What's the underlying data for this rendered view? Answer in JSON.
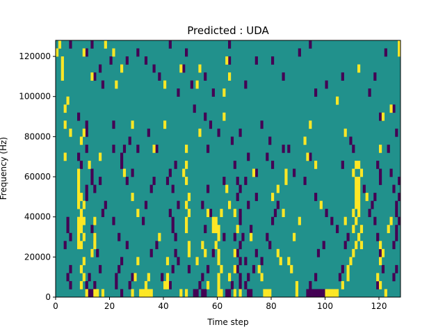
{
  "chart_data": {
    "type": "heatmap",
    "title": "Predicted : UDA",
    "xlabel": "Time step",
    "ylabel": "Frequency (Hz)",
    "xlim": [
      0,
      128
    ],
    "ylim": [
      0,
      128000
    ],
    "xticks": [
      0,
      20,
      40,
      60,
      80,
      100,
      120
    ],
    "yticks": [
      0,
      20000,
      40000,
      60000,
      80000,
      100000,
      120000
    ],
    "grid": false,
    "legend": "none",
    "colors": {
      "background": "#21918c",
      "low": "#440154",
      "high": "#fde725"
    },
    "cell_width_steps": 1,
    "cell_height_hz": 4000,
    "high_cells": [
      [
        0,
        120000
      ],
      [
        1,
        124000
      ],
      [
        2,
        116000
      ],
      [
        2,
        112000
      ],
      [
        2,
        108000
      ],
      [
        4,
        96000
      ],
      [
        3,
        92000
      ],
      [
        3,
        84000
      ],
      [
        5,
        80000
      ],
      [
        3,
        68000
      ],
      [
        8,
        60000
      ],
      [
        8,
        56000
      ],
      [
        8,
        52000
      ],
      [
        8,
        48000
      ],
      [
        8,
        44000
      ],
      [
        9,
        48000
      ],
      [
        9,
        40000
      ],
      [
        10,
        44000
      ],
      [
        8,
        36000
      ],
      [
        9,
        36000
      ],
      [
        10,
        36000
      ],
      [
        8,
        32000
      ],
      [
        9,
        32000
      ],
      [
        10,
        28000
      ],
      [
        8,
        28000
      ],
      [
        9,
        24000
      ],
      [
        8,
        24000
      ],
      [
        10,
        16000
      ],
      [
        9,
        12000
      ],
      [
        10,
        8000
      ],
      [
        9,
        4000
      ],
      [
        14,
        36000
      ],
      [
        14,
        28000
      ],
      [
        14,
        24000
      ],
      [
        13,
        20000
      ],
      [
        11,
        0
      ],
      [
        14,
        0
      ],
      [
        15,
        0
      ],
      [
        17,
        0
      ],
      [
        16,
        68000
      ],
      [
        12,
        64000
      ],
      [
        10,
        120000
      ],
      [
        13,
        108000
      ],
      [
        9,
        76000
      ],
      [
        10,
        80000
      ],
      [
        18,
        124000
      ],
      [
        21,
        120000
      ],
      [
        22,
        104000
      ],
      [
        24,
        112000
      ],
      [
        28,
        84000
      ],
      [
        25,
        60000
      ],
      [
        28,
        48000
      ],
      [
        30,
        40000
      ],
      [
        30,
        16000
      ],
      [
        29,
        8000
      ],
      [
        28,
        0
      ],
      [
        31,
        0
      ],
      [
        32,
        0
      ],
      [
        33,
        0
      ],
      [
        34,
        0
      ],
      [
        35,
        0
      ],
      [
        33,
        4000
      ],
      [
        34,
        8000
      ],
      [
        40,
        104000
      ],
      [
        40,
        84000
      ],
      [
        36,
        72000
      ],
      [
        38,
        28000
      ],
      [
        41,
        16000
      ],
      [
        41,
        8000
      ],
      [
        41,
        4000
      ],
      [
        40,
        4000
      ],
      [
        46,
        0
      ],
      [
        48,
        0
      ],
      [
        56,
        4000
      ],
      [
        46,
        112000
      ],
      [
        53,
        112000
      ],
      [
        52,
        104000
      ],
      [
        62,
        100000
      ],
      [
        64,
        108000
      ],
      [
        63,
        116000
      ],
      [
        62,
        88000
      ],
      [
        53,
        80000
      ],
      [
        48,
        72000
      ],
      [
        48,
        64000
      ],
      [
        48,
        56000
      ],
      [
        47,
        60000
      ],
      [
        49,
        48000
      ],
      [
        48,
        44000
      ],
      [
        49,
        40000
      ],
      [
        48,
        36000
      ],
      [
        48,
        32000
      ],
      [
        49,
        24000
      ],
      [
        49,
        20000
      ],
      [
        52,
        16000
      ],
      [
        54,
        24000
      ],
      [
        55,
        20000
      ],
      [
        58,
        36000
      ],
      [
        59,
        36000
      ],
      [
        58,
        32000
      ],
      [
        59,
        32000
      ],
      [
        60,
        32000
      ],
      [
        60,
        28000
      ],
      [
        59,
        24000
      ],
      [
        60,
        20000
      ],
      [
        60,
        16000
      ],
      [
        61,
        12000
      ],
      [
        60,
        8000
      ],
      [
        60,
        4000
      ],
      [
        60,
        0
      ],
      [
        61,
        0
      ],
      [
        63,
        52000
      ],
      [
        64,
        44000
      ],
      [
        56,
        40000
      ],
      [
        61,
        40000
      ],
      [
        66,
        40000
      ],
      [
        67,
        32000
      ],
      [
        66,
        20000
      ],
      [
        66,
        12000
      ],
      [
        64,
        8000
      ],
      [
        66,
        0
      ],
      [
        68,
        0
      ],
      [
        73,
        60000
      ],
      [
        72,
        28000
      ],
      [
        75,
        12000
      ],
      [
        76,
        8000
      ],
      [
        77,
        0
      ],
      [
        78,
        0
      ],
      [
        79,
        0
      ],
      [
        82,
        20000
      ],
      [
        83,
        16000
      ],
      [
        85,
        60000
      ],
      [
        85,
        56000
      ],
      [
        82,
        52000
      ],
      [
        80,
        48000
      ],
      [
        84,
        40000
      ],
      [
        90,
        36000
      ],
      [
        88,
        28000
      ],
      [
        86,
        16000
      ],
      [
        87,
        12000
      ],
      [
        89,
        0
      ],
      [
        89,
        4000
      ],
      [
        92,
        76000
      ],
      [
        93,
        68000
      ],
      [
        96,
        64000
      ],
      [
        94,
        84000
      ],
      [
        100,
        0
      ],
      [
        101,
        0
      ],
      [
        102,
        0
      ],
      [
        103,
        0
      ],
      [
        104,
        0
      ],
      [
        106,
        4000
      ],
      [
        108,
        8000
      ],
      [
        108,
        12000
      ],
      [
        109,
        16000
      ],
      [
        110,
        20000
      ],
      [
        111,
        24000
      ],
      [
        110,
        32000
      ],
      [
        111,
        36000
      ],
      [
        110,
        40000
      ],
      [
        112,
        40000
      ],
      [
        111,
        44000
      ],
      [
        112,
        44000
      ],
      [
        111,
        48000
      ],
      [
        112,
        48000
      ],
      [
        111,
        52000
      ],
      [
        112,
        52000
      ],
      [
        111,
        56000
      ],
      [
        112,
        56000
      ],
      [
        113,
        60000
      ],
      [
        112,
        64000
      ],
      [
        111,
        64000
      ],
      [
        110,
        60000
      ],
      [
        113,
        32000
      ],
      [
        112,
        28000
      ],
      [
        113,
        24000
      ],
      [
        107,
        36000
      ],
      [
        107,
        80000
      ],
      [
        104,
        96000
      ],
      [
        112,
        112000
      ],
      [
        120,
        16000
      ],
      [
        119,
        8000
      ],
      [
        120,
        4000
      ],
      [
        122,
        0
      ],
      [
        121,
        20000
      ],
      [
        120,
        24000
      ],
      [
        123,
        32000
      ],
      [
        124,
        36000
      ],
      [
        120,
        72000
      ],
      [
        121,
        88000
      ],
      [
        124,
        92000
      ],
      [
        127,
        120000
      ],
      [
        127,
        124000
      ],
      [
        115,
        48000
      ],
      [
        98,
        44000
      ]
    ],
    "low_cells": [
      [
        5,
        124000
      ],
      [
        11,
        120000
      ],
      [
        13,
        124000
      ],
      [
        14,
        108000
      ],
      [
        16,
        112000
      ],
      [
        17,
        104000
      ],
      [
        20,
        116000
      ],
      [
        26,
        116000
      ],
      [
        30,
        120000
      ],
      [
        33,
        116000
      ],
      [
        38,
        108000
      ],
      [
        42,
        124000
      ],
      [
        45,
        100000
      ],
      [
        48,
        120000
      ],
      [
        55,
        108000
      ],
      [
        58,
        100000
      ],
      [
        64,
        116000
      ],
      [
        64,
        124000
      ],
      [
        70,
        104000
      ],
      [
        74,
        116000
      ],
      [
        80,
        116000
      ],
      [
        84,
        108000
      ],
      [
        90,
        120000
      ],
      [
        94,
        124000
      ],
      [
        96,
        100000
      ],
      [
        100,
        104000
      ],
      [
        106,
        108000
      ],
      [
        116,
        100000
      ],
      [
        118,
        108000
      ],
      [
        120,
        88000
      ],
      [
        122,
        120000
      ],
      [
        8,
        88000
      ],
      [
        11,
        84000
      ],
      [
        11,
        80000
      ],
      [
        11,
        72000
      ],
      [
        8,
        68000
      ],
      [
        9,
        64000
      ],
      [
        13,
        60000
      ],
      [
        11,
        52000
      ],
      [
        11,
        48000
      ],
      [
        13,
        56000
      ],
      [
        14,
        52000
      ],
      [
        16,
        56000
      ],
      [
        17,
        40000
      ],
      [
        18,
        44000
      ],
      [
        14,
        28000
      ],
      [
        13,
        32000
      ],
      [
        15,
        20000
      ],
      [
        16,
        12000
      ],
      [
        12,
        8000
      ],
      [
        11,
        4000
      ],
      [
        12,
        0
      ],
      [
        13,
        0
      ],
      [
        14,
        4000
      ],
      [
        5,
        4000
      ],
      [
        4,
        8000
      ],
      [
        5,
        12000
      ],
      [
        4,
        32000
      ],
      [
        4,
        36000
      ],
      [
        5,
        28000
      ],
      [
        3,
        24000
      ],
      [
        21,
        84000
      ],
      [
        21,
        72000
      ],
      [
        24,
        64000
      ],
      [
        24,
        68000
      ],
      [
        25,
        72000
      ],
      [
        26,
        56000
      ],
      [
        28,
        60000
      ],
      [
        27,
        76000
      ],
      [
        21,
        36000
      ],
      [
        23,
        28000
      ],
      [
        26,
        24000
      ],
      [
        24,
        16000
      ],
      [
        23,
        12000
      ],
      [
        22,
        8000
      ],
      [
        22,
        4000
      ],
      [
        27,
        4000
      ],
      [
        24,
        0
      ],
      [
        28,
        8000
      ],
      [
        30,
        72000
      ],
      [
        34,
        80000
      ],
      [
        37,
        72000
      ],
      [
        36,
        56000
      ],
      [
        35,
        52000
      ],
      [
        33,
        44000
      ],
      [
        32,
        36000
      ],
      [
        37,
        24000
      ],
      [
        35,
        20000
      ],
      [
        39,
        8000
      ],
      [
        42,
        60000
      ],
      [
        44,
        64000
      ],
      [
        41,
        56000
      ],
      [
        43,
        52000
      ],
      [
        45,
        44000
      ],
      [
        42,
        40000
      ],
      [
        43,
        36000
      ],
      [
        43,
        32000
      ],
      [
        44,
        28000
      ],
      [
        44,
        20000
      ],
      [
        45,
        16000
      ],
      [
        43,
        12000
      ],
      [
        42,
        4000
      ],
      [
        49,
        12000
      ],
      [
        51,
        0
      ],
      [
        52,
        0
      ],
      [
        53,
        4000
      ],
      [
        54,
        0
      ],
      [
        55,
        0
      ],
      [
        54,
        8000
      ],
      [
        56,
        12000
      ],
      [
        58,
        20000
      ],
      [
        62,
        28000
      ],
      [
        57,
        40000
      ],
      [
        55,
        32000
      ],
      [
        54,
        44000
      ],
      [
        56,
        52000
      ],
      [
        56,
        72000
      ],
      [
        57,
        84000
      ],
      [
        55,
        88000
      ],
      [
        60,
        80000
      ],
      [
        65,
        76000
      ],
      [
        66,
        64000
      ],
      [
        67,
        56000
      ],
      [
        67,
        48000
      ],
      [
        68,
        52000
      ],
      [
        68,
        40000
      ],
      [
        68,
        36000
      ],
      [
        69,
        28000
      ],
      [
        68,
        24000
      ],
      [
        67,
        20000
      ],
      [
        68,
        16000
      ],
      [
        67,
        12000
      ],
      [
        68,
        8000
      ],
      [
        68,
        4000
      ],
      [
        70,
        4000
      ],
      [
        71,
        0
      ],
      [
        72,
        0
      ],
      [
        71,
        8000
      ],
      [
        73,
        12000
      ],
      [
        74,
        20000
      ],
      [
        76,
        16000
      ],
      [
        78,
        28000
      ],
      [
        79,
        24000
      ],
      [
        80,
        36000
      ],
      [
        81,
        40000
      ],
      [
        82,
        44000
      ],
      [
        80,
        64000
      ],
      [
        78,
        68000
      ],
      [
        84,
        72000
      ],
      [
        86,
        72000
      ],
      [
        88,
        60000
      ],
      [
        92,
        56000
      ],
      [
        94,
        68000
      ],
      [
        96,
        48000
      ],
      [
        100,
        40000
      ],
      [
        102,
        36000
      ],
      [
        104,
        32000
      ],
      [
        99,
        24000
      ],
      [
        97,
        20000
      ],
      [
        96,
        8000
      ],
      [
        94,
        4000
      ],
      [
        93,
        0
      ],
      [
        94,
        0
      ],
      [
        95,
        0
      ],
      [
        96,
        0
      ],
      [
        97,
        0
      ],
      [
        98,
        0
      ],
      [
        99,
        0
      ],
      [
        105,
        8000
      ],
      [
        106,
        12000
      ],
      [
        107,
        24000
      ],
      [
        108,
        28000
      ],
      [
        106,
        64000
      ],
      [
        110,
        72000
      ],
      [
        109,
        76000
      ],
      [
        114,
        52000
      ],
      [
        116,
        40000
      ],
      [
        117,
        44000
      ],
      [
        118,
        48000
      ],
      [
        120,
        56000
      ],
      [
        120,
        60000
      ],
      [
        119,
        64000
      ],
      [
        118,
        36000
      ],
      [
        119,
        28000
      ],
      [
        120,
        20000
      ],
      [
        121,
        12000
      ],
      [
        119,
        4000
      ],
      [
        125,
        8000
      ],
      [
        126,
        12000
      ],
      [
        125,
        24000
      ],
      [
        126,
        28000
      ],
      [
        126,
        32000
      ],
      [
        127,
        36000
      ],
      [
        126,
        44000
      ],
      [
        127,
        48000
      ],
      [
        125,
        52000
      ],
      [
        127,
        56000
      ],
      [
        124,
        60000
      ],
      [
        123,
        72000
      ],
      [
        126,
        80000
      ],
      [
        125,
        92000
      ],
      [
        126,
        40000
      ],
      [
        76,
        84000
      ],
      [
        79,
        76000
      ],
      [
        68,
        80000
      ],
      [
        51,
        92000
      ],
      [
        50,
        104000
      ],
      [
        47,
        112000
      ],
      [
        36,
        112000
      ],
      [
        63,
        0
      ],
      [
        64,
        0
      ],
      [
        65,
        4000
      ],
      [
        66,
        28000
      ],
      [
        70,
        16000
      ],
      [
        72,
        32000
      ],
      [
        71,
        44000
      ],
      [
        74,
        48000
      ],
      [
        70,
        56000
      ],
      [
        71,
        68000
      ],
      [
        74,
        60000
      ],
      [
        62,
        56000
      ]
    ]
  }
}
